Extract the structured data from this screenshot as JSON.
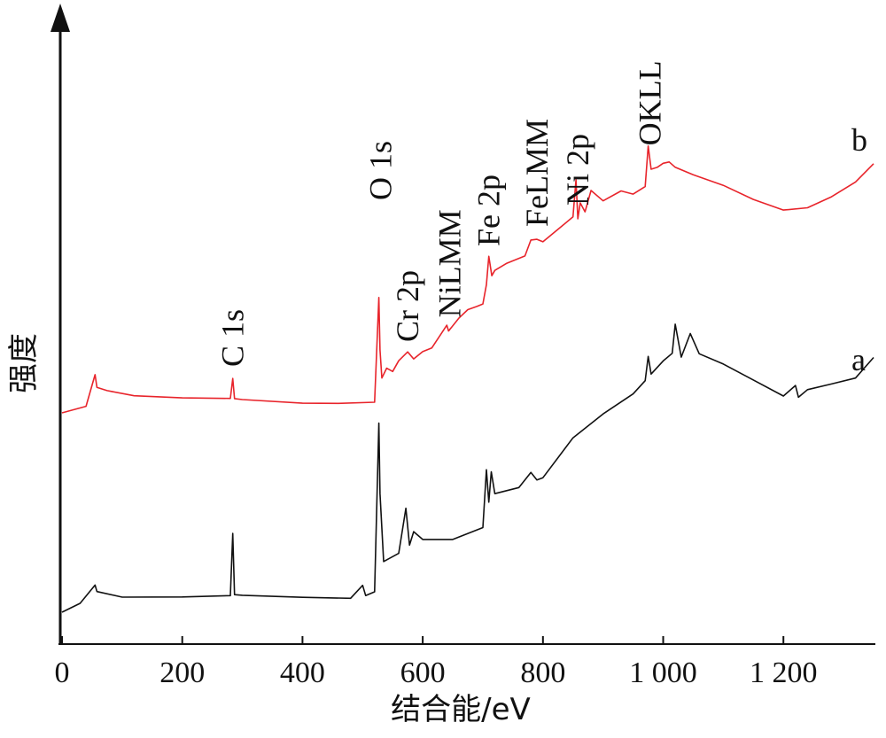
{
  "chart_data": {
    "type": "line",
    "xlabel": "结合能/eV",
    "ylabel": "强度",
    "xlim": [
      0,
      1350
    ],
    "x_ticks": [
      0,
      200,
      400,
      600,
      800,
      1000,
      1200
    ],
    "x_tick_labels": [
      "0",
      "200",
      "400",
      "600",
      "800",
      "1 000",
      "1 200"
    ],
    "y_ticks_shown": false,
    "grid": false,
    "series": [
      {
        "name": "b",
        "color": "#e8242b",
        "x": [
          0,
          40,
          55,
          58,
          75,
          120,
          200,
          280,
          284,
          287,
          300,
          400,
          460,
          520,
          527,
          529,
          532,
          540,
          550,
          560,
          575,
          585,
          600,
          615,
          640,
          643,
          660,
          675,
          690,
          700,
          706,
          710,
          715,
          720,
          740,
          770,
          780,
          790,
          800,
          830,
          850,
          855,
          858,
          862,
          870,
          880,
          900,
          930,
          950,
          970,
          975,
          980,
          990,
          1000,
          1010,
          1020,
          1050,
          1100,
          1150,
          1200,
          1240,
          1280,
          1320,
          1350
        ],
        "y": [
          0,
          4,
          22,
          14,
          12,
          10,
          9,
          8,
          20,
          8,
          8,
          6,
          5,
          6,
          65,
          36,
          20,
          25,
          23,
          30,
          35,
          30,
          34,
          36,
          50,
          46,
          53,
          58,
          60,
          62,
          72,
          88,
          78,
          80,
          84,
          88,
          98,
          98,
          96,
          105,
          110,
          132,
          110,
          118,
          114,
          125,
          120,
          125,
          124,
          128,
          150,
          138,
          138,
          141,
          142,
          138,
          134,
          128,
          120,
          114,
          116,
          122,
          130,
          140
        ]
      },
      {
        "name": "a",
        "color": "#111111",
        "x": [
          0,
          30,
          55,
          58,
          100,
          200,
          280,
          284,
          287,
          300,
          400,
          480,
          500,
          505,
          520,
          527,
          529,
          535,
          560,
          572,
          578,
          585,
          600,
          650,
          700,
          706,
          710,
          714,
          720,
          760,
          780,
          790,
          800,
          850,
          900,
          950,
          970,
          975,
          980,
          1000,
          1015,
          1020,
          1030,
          1045,
          1060,
          1100,
          1150,
          1200,
          1220,
          1225,
          1240,
          1280,
          1320,
          1350
        ],
        "y": [
          0,
          4,
          14,
          10,
          8,
          8,
          8,
          40,
          9,
          9,
          8,
          7,
          14,
          8,
          10,
          95,
          60,
          25,
          30,
          52,
          34,
          40,
          36,
          36,
          42,
          72,
          55,
          70,
          60,
          62,
          70,
          66,
          68,
          88,
          100,
          110,
          116,
          128,
          120,
          126,
          130,
          144,
          128,
          140,
          130,
          124,
          116,
          108,
          114,
          108,
          112,
          114,
          118,
          128
        ]
      }
    ],
    "peak_labels": [
      {
        "text": "C 1s",
        "x": 284,
        "series": "b"
      },
      {
        "text": "O 1s",
        "x": 530,
        "series": "b"
      },
      {
        "text": "Cr 2p",
        "x": 575,
        "series": "b"
      },
      {
        "text": "NiLMM",
        "x": 645,
        "series": "b"
      },
      {
        "text": "Fe 2p",
        "x": 710,
        "series": "b"
      },
      {
        "text": "FeLMM",
        "x": 790,
        "series": "b"
      },
      {
        "text": "Ni 2p",
        "x": 858,
        "series": "b"
      },
      {
        "text": "OKLL",
        "x": 978,
        "series": "b"
      }
    ]
  }
}
